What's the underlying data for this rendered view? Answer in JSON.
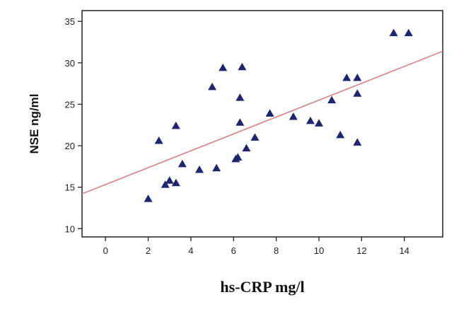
{
  "chart_data": {
    "type": "scatter",
    "title": "",
    "xlabel": "hs-CRP mg/l",
    "ylabel": "NSE ng/ml",
    "xlim": [
      -1.1,
      15.8
    ],
    "ylim": [
      9,
      36.3
    ],
    "xticks": [
      "0",
      "2",
      "4",
      "6",
      "8",
      "10",
      "12",
      "14"
    ],
    "yticks": [
      "10",
      "15",
      "20",
      "25",
      "30",
      "35"
    ],
    "grid": false,
    "legend": "none",
    "marker": "triangle",
    "colors": {
      "points": "#1f2470",
      "fit_line": "#d98080",
      "axes": "#222222"
    },
    "series": [
      {
        "points": [
          {
            "x": 2.0,
            "y": 13.6
          },
          {
            "x": 2.5,
            "y": 20.6
          },
          {
            "x": 2.8,
            "y": 15.3
          },
          {
            "x": 3.0,
            "y": 15.8
          },
          {
            "x": 3.3,
            "y": 15.5
          },
          {
            "x": 3.3,
            "y": 22.4
          },
          {
            "x": 3.6,
            "y": 17.8
          },
          {
            "x": 4.4,
            "y": 17.1
          },
          {
            "x": 5.0,
            "y": 27.1
          },
          {
            "x": 5.2,
            "y": 17.3
          },
          {
            "x": 5.5,
            "y": 29.4
          },
          {
            "x": 6.1,
            "y": 18.4
          },
          {
            "x": 6.2,
            "y": 18.6
          },
          {
            "x": 6.3,
            "y": 25.8
          },
          {
            "x": 6.3,
            "y": 22.8
          },
          {
            "x": 6.4,
            "y": 29.5
          },
          {
            "x": 6.6,
            "y": 19.7
          },
          {
            "x": 7.0,
            "y": 21.0
          },
          {
            "x": 7.7,
            "y": 23.9
          },
          {
            "x": 8.8,
            "y": 23.5
          },
          {
            "x": 9.6,
            "y": 23.0
          },
          {
            "x": 10.0,
            "y": 22.7
          },
          {
            "x": 10.6,
            "y": 25.5
          },
          {
            "x": 11.0,
            "y": 21.3
          },
          {
            "x": 11.3,
            "y": 28.2
          },
          {
            "x": 11.8,
            "y": 28.2
          },
          {
            "x": 11.8,
            "y": 26.3
          },
          {
            "x": 11.8,
            "y": 20.4
          },
          {
            "x": 13.5,
            "y": 33.6
          },
          {
            "x": 14.2,
            "y": 33.6
          }
        ]
      }
    ],
    "fit_line": {
      "x": [
        -1.1,
        15.8
      ],
      "y": [
        14.2,
        31.4
      ]
    }
  }
}
